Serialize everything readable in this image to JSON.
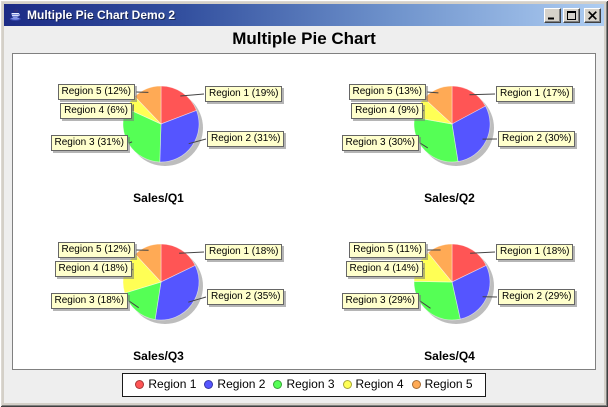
{
  "window": {
    "title": "Multiple Pie Chart Demo 2",
    "icon": "java-coffee-cup",
    "controls": [
      {
        "name": "minimize"
      },
      {
        "name": "maximize"
      },
      {
        "name": "close"
      }
    ]
  },
  "chart": {
    "title": "Multiple Pie Chart",
    "background_color": "#EEEEEE",
    "plot_background_color": "#FFFFFF",
    "label_box_color": "#FFFFCC",
    "shadow_color": "#999999"
  },
  "palette": [
    "#FF5555",
    "#5555FF",
    "#55FF55",
    "#FFFF55",
    "#FFAA55"
  ],
  "chart_data": [
    {
      "type": "pie",
      "title": "Sales/Q1",
      "categories": [
        "Region 1",
        "Region 2",
        "Region 3",
        "Region 4",
        "Region 5"
      ],
      "values_pct": [
        19,
        31,
        31,
        6,
        12
      ],
      "labels": [
        "Region 1 (19%)",
        "Region 2 (31%)",
        "Region 3 (31%)",
        "Region 4 (6%)",
        "Region 5 (12%)"
      ]
    },
    {
      "type": "pie",
      "title": "Sales/Q2",
      "categories": [
        "Region 1",
        "Region 2",
        "Region 3",
        "Region 4",
        "Region 5"
      ],
      "values_pct": [
        17,
        30,
        30,
        9,
        13
      ],
      "labels": [
        "Region 1 (17%)",
        "Region 2 (30%)",
        "Region 3 (30%)",
        "Region 4 (9%)",
        "Region 5 (13%)"
      ]
    },
    {
      "type": "pie",
      "title": "Sales/Q3",
      "categories": [
        "Region 1",
        "Region 2",
        "Region 3",
        "Region 4",
        "Region 5"
      ],
      "values_pct": [
        18,
        35,
        18,
        18,
        12
      ],
      "labels": [
        "Region 1 (18%)",
        "Region 2 (35%)",
        "Region 3 (18%)",
        "Region 4 (18%)",
        "Region 5 (12%)"
      ]
    },
    {
      "type": "pie",
      "title": "Sales/Q4",
      "categories": [
        "Region 1",
        "Region 2",
        "Region 3",
        "Region 4",
        "Region 5"
      ],
      "values_pct": [
        18,
        29,
        29,
        14,
        11
      ],
      "labels": [
        "Region 1 (18%)",
        "Region 2 (29%)",
        "Region 3 (29%)",
        "Region 4 (14%)",
        "Region 5 (11%)"
      ]
    }
  ],
  "legend": {
    "items": [
      {
        "label": "Region 1",
        "color": "#FF5555"
      },
      {
        "label": "Region 2",
        "color": "#5555FF"
      },
      {
        "label": "Region 3",
        "color": "#55FF55"
      },
      {
        "label": "Region 4",
        "color": "#FFFF55"
      },
      {
        "label": "Region 5",
        "color": "#FFAA55"
      }
    ]
  }
}
